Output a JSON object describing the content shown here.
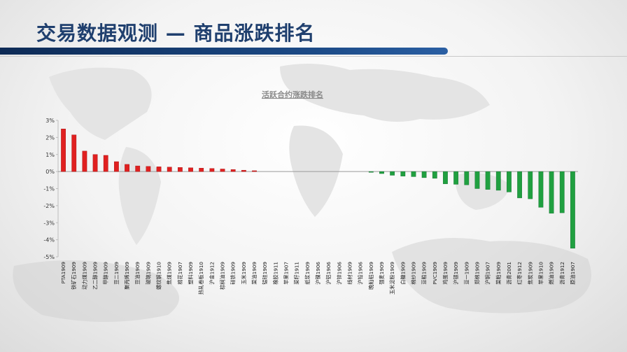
{
  "slide": {
    "title": "交易数据观测 — 商品涨跌排名"
  },
  "chart_data": {
    "type": "bar",
    "title": "活跃合约涨跌排名",
    "xlabel": "",
    "ylabel": "",
    "ylim": [
      -5,
      3
    ],
    "yticks": [
      "3%",
      "2%",
      "1%",
      "0%",
      "-1%",
      "-2%",
      "-3%",
      "-4%",
      "-5%"
    ],
    "grid": false,
    "positive_color": "#e02020",
    "negative_color": "#20a040",
    "categories": [
      "PTA1909",
      "铁矿石1909",
      "动力煤1909",
      "乙二醇1909",
      "甲醇1909",
      "豆二1909",
      "聚丙烯1909",
      "豆油1909",
      "玻璃1909",
      "螺纹钢1910",
      "焦煤1909",
      "棉花1907",
      "塑料1909",
      "热轧卷板1910",
      "沪金1912",
      "棕榈油1909",
      "硅铁1909",
      "玉米1909",
      "菜油1909",
      "锰硅1909",
      "橡胶1911",
      "苹果1907",
      "菜籽1911",
      "纸浆1909",
      "沪镍1906",
      "沪铝1906",
      "沪锌1906",
      "线材1909",
      "沪铅1906",
      "晚籼稻1909",
      "强麦1909",
      "玉米淀粉1909",
      "白糖1909",
      "棉纱1909",
      "豆粕1909",
      "PVC1909",
      "鸡蛋1909",
      "沪银1909",
      "豆一1909",
      "郑棉1909",
      "沪铜1907",
      "菜粕1909",
      "沥青2001",
      "红枣1912",
      "焦炭1909",
      "苹果1910",
      "燃油1909",
      "沥青1912",
      "原油1907"
    ],
    "values": [
      2.5,
      2.15,
      1.2,
      1.0,
      0.95,
      0.58,
      0.42,
      0.33,
      0.3,
      0.28,
      0.26,
      0.24,
      0.22,
      0.2,
      0.18,
      0.15,
      0.12,
      0.08,
      0.05,
      0,
      0,
      0,
      0,
      0,
      0,
      0,
      0,
      0,
      0,
      -0.05,
      -0.12,
      -0.22,
      -0.27,
      -0.3,
      -0.36,
      -0.4,
      -0.72,
      -0.75,
      -0.78,
      -1.0,
      -1.05,
      -1.1,
      -1.2,
      -1.55,
      -1.6,
      -2.1,
      -2.45,
      -2.42,
      -4.5
    ]
  }
}
